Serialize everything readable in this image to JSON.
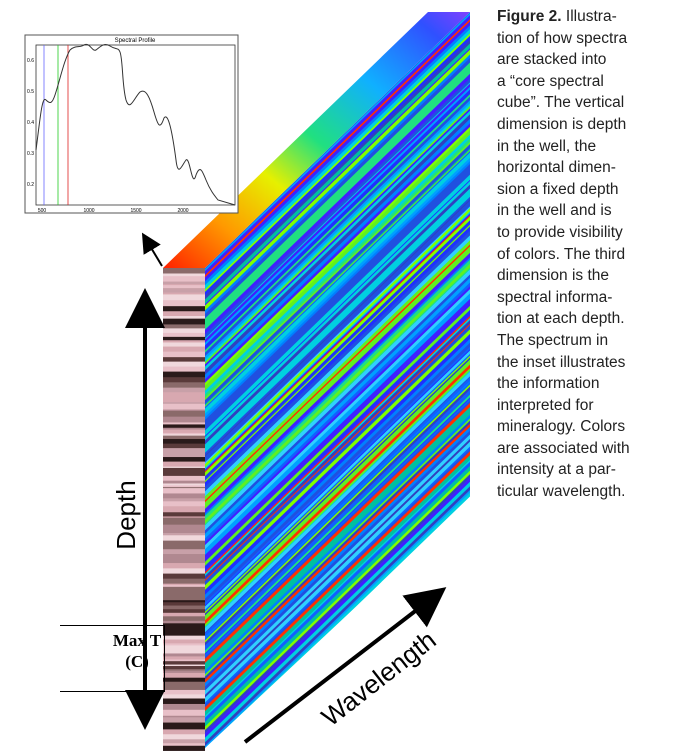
{
  "figure": {
    "inset": {
      "title": "Spectral Profile",
      "y_ticks": [
        "0.6",
        "0.5",
        "0.4",
        "0.3",
        "0.2"
      ],
      "x_ticks": [
        "500",
        "1000",
        "1500",
        "2000"
      ]
    },
    "depth_label": "Depth",
    "wavelength_label": "Wavelength",
    "caption": {
      "label": "Figure 2.",
      "lines": [
        "Illustra-",
        "tion of how spectra",
        "are stacked into",
        "a “core spectral",
        "cube”.  The vertical",
        "dimension is depth",
        "in the well, the",
        "horizontal dimen-",
        "sion a fixed depth",
        "in the well and is",
        "to provide visibility",
        "of colors. The third",
        "dimension is the",
        "spectral informa-",
        "tion at each depth.",
        "The spectrum in",
        "the inset illustrates",
        "the information",
        "interpreted for",
        "mineralogy.  Colors",
        "are associated with",
        "intensity at a par-",
        "ticular wavelength."
      ]
    }
  },
  "table": {
    "header": [
      "Max T",
      "(C)"
    ]
  }
}
